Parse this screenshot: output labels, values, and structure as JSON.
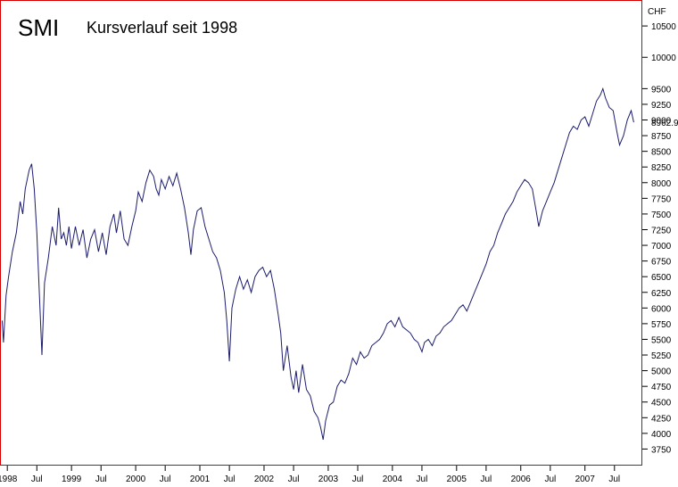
{
  "chart_data": {
    "type": "line",
    "title": "SMI",
    "subtitle": "Kursverlauf seit 1998",
    "unit": "CHF",
    "last_value_label": "8962.9",
    "ylim": [
      3500,
      10900
    ],
    "y_ticks": [
      3750,
      4000,
      4250,
      4500,
      4750,
      5000,
      5250,
      5500,
      5750,
      6000,
      6250,
      6500,
      6750,
      7000,
      7250,
      7500,
      7750,
      8000,
      8250,
      8500,
      8750,
      9000,
      9250,
      9500,
      10000,
      10500
    ],
    "x_labels": [
      {
        "label": "1998",
        "x": 1998.08
      },
      {
        "label": "Jul",
        "x": 1998.54
      },
      {
        "label": "1999",
        "x": 1999.08
      },
      {
        "label": "Jul",
        "x": 1999.54
      },
      {
        "label": "2000",
        "x": 2000.08
      },
      {
        "label": "Jul",
        "x": 2000.54
      },
      {
        "label": "2001",
        "x": 2001.08
      },
      {
        "label": "Jul",
        "x": 2001.54
      },
      {
        "label": "2002",
        "x": 2002.08
      },
      {
        "label": "Jul",
        "x": 2002.54
      },
      {
        "label": "2003",
        "x": 2003.08
      },
      {
        "label": "Jul",
        "x": 2003.54
      },
      {
        "label": "2004",
        "x": 2004.08
      },
      {
        "label": "Jul",
        "x": 2004.54
      },
      {
        "label": "2005",
        "x": 2005.08
      },
      {
        "label": "Jul",
        "x": 2005.54
      },
      {
        "label": "2006",
        "x": 2006.08
      },
      {
        "label": "Jul",
        "x": 2006.54
      },
      {
        "label": "2007",
        "x": 2007.08
      },
      {
        "label": "Jul",
        "x": 2007.54
      }
    ],
    "series": [
      {
        "color": "#1c1c6e",
        "points": [
          [
            1998.0,
            5800
          ],
          [
            1998.02,
            5450
          ],
          [
            1998.06,
            6200
          ],
          [
            1998.1,
            6500
          ],
          [
            1998.16,
            6900
          ],
          [
            1998.22,
            7200
          ],
          [
            1998.28,
            7700
          ],
          [
            1998.32,
            7500
          ],
          [
            1998.36,
            7900
          ],
          [
            1998.42,
            8200
          ],
          [
            1998.46,
            8300
          ],
          [
            1998.5,
            7900
          ],
          [
            1998.54,
            7200
          ],
          [
            1998.58,
            6200
          ],
          [
            1998.62,
            5250
          ],
          [
            1998.66,
            6400
          ],
          [
            1998.72,
            6800
          ],
          [
            1998.78,
            7300
          ],
          [
            1998.84,
            7000
          ],
          [
            1998.88,
            7600
          ],
          [
            1998.92,
            7100
          ],
          [
            1998.96,
            7200
          ],
          [
            1999.0,
            7000
          ],
          [
            1999.04,
            7300
          ],
          [
            1999.08,
            6950
          ],
          [
            1999.14,
            7300
          ],
          [
            1999.2,
            7000
          ],
          [
            1999.26,
            7250
          ],
          [
            1999.32,
            6800
          ],
          [
            1999.38,
            7100
          ],
          [
            1999.44,
            7250
          ],
          [
            1999.5,
            6900
          ],
          [
            1999.56,
            7200
          ],
          [
            1999.62,
            6850
          ],
          [
            1999.68,
            7300
          ],
          [
            1999.74,
            7500
          ],
          [
            1999.78,
            7200
          ],
          [
            1999.84,
            7550
          ],
          [
            1999.9,
            7100
          ],
          [
            1999.96,
            7000
          ],
          [
            2000.02,
            7300
          ],
          [
            2000.08,
            7550
          ],
          [
            2000.12,
            7850
          ],
          [
            2000.18,
            7700
          ],
          [
            2000.24,
            8000
          ],
          [
            2000.3,
            8200
          ],
          [
            2000.36,
            8100
          ],
          [
            2000.4,
            7900
          ],
          [
            2000.44,
            7800
          ],
          [
            2000.48,
            8050
          ],
          [
            2000.54,
            7900
          ],
          [
            2000.6,
            8100
          ],
          [
            2000.66,
            7950
          ],
          [
            2000.72,
            8150
          ],
          [
            2000.78,
            7900
          ],
          [
            2000.84,
            7600
          ],
          [
            2000.9,
            7200
          ],
          [
            2000.94,
            6850
          ],
          [
            2000.98,
            7250
          ],
          [
            2001.04,
            7550
          ],
          [
            2001.1,
            7600
          ],
          [
            2001.16,
            7300
          ],
          [
            2001.22,
            7100
          ],
          [
            2001.28,
            6900
          ],
          [
            2001.34,
            6800
          ],
          [
            2001.4,
            6600
          ],
          [
            2001.46,
            6250
          ],
          [
            2001.5,
            5800
          ],
          [
            2001.54,
            5150
          ],
          [
            2001.58,
            6000
          ],
          [
            2001.64,
            6300
          ],
          [
            2001.7,
            6500
          ],
          [
            2001.76,
            6300
          ],
          [
            2001.82,
            6450
          ],
          [
            2001.88,
            6250
          ],
          [
            2001.94,
            6500
          ],
          [
            2002.0,
            6600
          ],
          [
            2002.06,
            6650
          ],
          [
            2002.12,
            6500
          ],
          [
            2002.18,
            6600
          ],
          [
            2002.24,
            6300
          ],
          [
            2002.3,
            5900
          ],
          [
            2002.34,
            5600
          ],
          [
            2002.38,
            5000
          ],
          [
            2002.44,
            5400
          ],
          [
            2002.5,
            4900
          ],
          [
            2002.54,
            4700
          ],
          [
            2002.58,
            5000
          ],
          [
            2002.62,
            4650
          ],
          [
            2002.68,
            5100
          ],
          [
            2002.74,
            4700
          ],
          [
            2002.8,
            4600
          ],
          [
            2002.86,
            4350
          ],
          [
            2002.92,
            4250
          ],
          [
            2002.96,
            4100
          ],
          [
            2003.0,
            3900
          ],
          [
            2003.04,
            4200
          ],
          [
            2003.1,
            4450
          ],
          [
            2003.16,
            4500
          ],
          [
            2003.22,
            4750
          ],
          [
            2003.28,
            4850
          ],
          [
            2003.34,
            4800
          ],
          [
            2003.4,
            4950
          ],
          [
            2003.46,
            5200
          ],
          [
            2003.52,
            5100
          ],
          [
            2003.58,
            5300
          ],
          [
            2003.64,
            5200
          ],
          [
            2003.7,
            5250
          ],
          [
            2003.76,
            5400
          ],
          [
            2003.82,
            5450
          ],
          [
            2003.88,
            5500
          ],
          [
            2003.94,
            5600
          ],
          [
            2004.0,
            5750
          ],
          [
            2004.06,
            5800
          ],
          [
            2004.12,
            5700
          ],
          [
            2004.18,
            5850
          ],
          [
            2004.24,
            5700
          ],
          [
            2004.3,
            5650
          ],
          [
            2004.36,
            5600
          ],
          [
            2004.42,
            5500
          ],
          [
            2004.48,
            5450
          ],
          [
            2004.54,
            5300
          ],
          [
            2004.58,
            5450
          ],
          [
            2004.64,
            5500
          ],
          [
            2004.7,
            5400
          ],
          [
            2004.76,
            5550
          ],
          [
            2004.82,
            5600
          ],
          [
            2004.88,
            5700
          ],
          [
            2004.94,
            5750
          ],
          [
            2005.0,
            5800
          ],
          [
            2005.06,
            5900
          ],
          [
            2005.12,
            6000
          ],
          [
            2005.18,
            6050
          ],
          [
            2005.24,
            5950
          ],
          [
            2005.3,
            6100
          ],
          [
            2005.36,
            6250
          ],
          [
            2005.42,
            6400
          ],
          [
            2005.48,
            6550
          ],
          [
            2005.54,
            6700
          ],
          [
            2005.6,
            6900
          ],
          [
            2005.66,
            7000
          ],
          [
            2005.72,
            7200
          ],
          [
            2005.78,
            7350
          ],
          [
            2005.84,
            7500
          ],
          [
            2005.9,
            7600
          ],
          [
            2005.96,
            7700
          ],
          [
            2006.02,
            7850
          ],
          [
            2006.08,
            7950
          ],
          [
            2006.14,
            8050
          ],
          [
            2006.2,
            8000
          ],
          [
            2006.26,
            7900
          ],
          [
            2006.32,
            7550
          ],
          [
            2006.36,
            7300
          ],
          [
            2006.42,
            7550
          ],
          [
            2006.48,
            7700
          ],
          [
            2006.54,
            7850
          ],
          [
            2006.6,
            8000
          ],
          [
            2006.66,
            8200
          ],
          [
            2006.72,
            8400
          ],
          [
            2006.78,
            8600
          ],
          [
            2006.84,
            8800
          ],
          [
            2006.9,
            8900
          ],
          [
            2006.96,
            8850
          ],
          [
            2007.02,
            9000
          ],
          [
            2007.08,
            9050
          ],
          [
            2007.14,
            8900
          ],
          [
            2007.2,
            9100
          ],
          [
            2007.26,
            9300
          ],
          [
            2007.32,
            9400
          ],
          [
            2007.36,
            9500
          ],
          [
            2007.4,
            9350
          ],
          [
            2007.46,
            9200
          ],
          [
            2007.52,
            9150
          ],
          [
            2007.58,
            8800
          ],
          [
            2007.62,
            8600
          ],
          [
            2007.68,
            8750
          ],
          [
            2007.74,
            9000
          ],
          [
            2007.8,
            9150
          ],
          [
            2007.84,
            8962.9
          ]
        ]
      }
    ]
  }
}
